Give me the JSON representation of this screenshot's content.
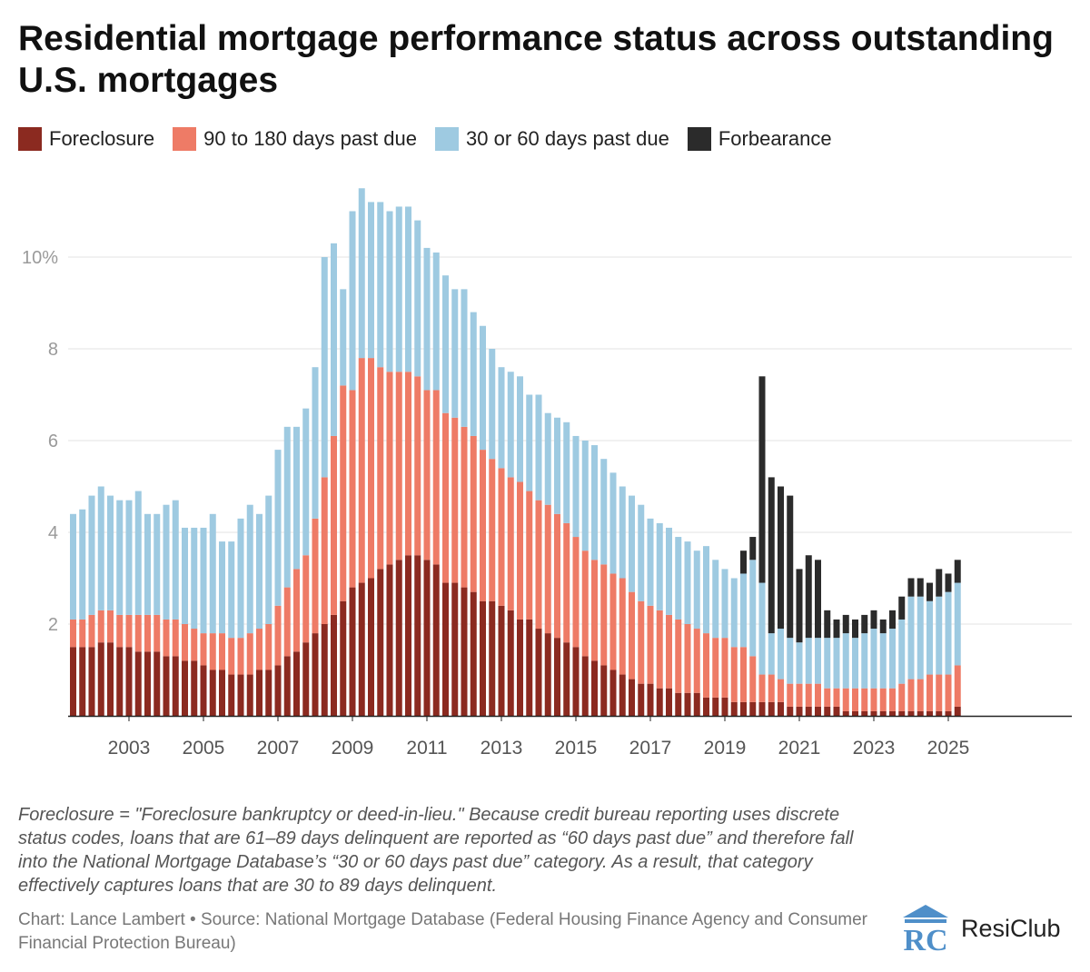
{
  "title": "Residential mortgage performance status across outstanding U.S. mortgages",
  "legend": [
    {
      "label": "Foreclosure",
      "color": "#8b2a20"
    },
    {
      "label": "90 to 180 days past due",
      "color": "#ee7b66"
    },
    {
      "label": "30 or 60 days past due",
      "color": "#9ecae1"
    },
    {
      "label": "Forbearance",
      "color": "#2b2b2b"
    }
  ],
  "note": "Foreclosure = \"Foreclosure bankruptcy or deed-in-lieu.\" Because credit bureau reporting uses discrete status codes, loans that are 61–89 days delinquent are reported as “60 days past due” and therefore fall into the National Mortgage Database’s “30 or 60 days past due” category. As a result, that category effectively captures loans that are 30 to 89 days delinquent.",
  "credit": "Chart: Lance Lambert • Source: National Mortgage Database (Federal Housing Finance Agency and Consumer Financial Protection Bureau)",
  "logo": {
    "mark": "RC",
    "word": "ResiClub"
  },
  "chart_data": {
    "type": "bar",
    "stacked": true,
    "title": "Residential mortgage performance status across outstanding U.S. mortgages",
    "xlabel": "",
    "ylabel": "",
    "ylim": [
      0,
      11.6
    ],
    "y_ticks": [
      {
        "v": 2,
        "label": "2"
      },
      {
        "v": 4,
        "label": "4"
      },
      {
        "v": 6,
        "label": "6"
      },
      {
        "v": 8,
        "label": "8"
      },
      {
        "v": 10,
        "label": "10%"
      }
    ],
    "x_tick_labels": [
      "2003",
      "2005",
      "2007",
      "2009",
      "2011",
      "2013",
      "2015",
      "2017",
      "2019",
      "2021",
      "2023",
      "2025"
    ],
    "grid": true,
    "legend_position": "top",
    "start": "2002 Q1",
    "categories": [
      "2002 Q1",
      "2002 Q2",
      "2002 Q3",
      "2002 Q4",
      "2003 Q1",
      "2003 Q2",
      "2003 Q3",
      "2003 Q4",
      "2004 Q1",
      "2004 Q2",
      "2004 Q3",
      "2004 Q4",
      "2005 Q1",
      "2005 Q2",
      "2005 Q3",
      "2005 Q4",
      "2006 Q1",
      "2006 Q2",
      "2006 Q3",
      "2006 Q4",
      "2007 Q1",
      "2007 Q2",
      "2007 Q3",
      "2007 Q4",
      "2008 Q1",
      "2008 Q2",
      "2008 Q3",
      "2008 Q4",
      "2009 Q1",
      "2009 Q2",
      "2009 Q3",
      "2009 Q4",
      "2010 Q1",
      "2010 Q2",
      "2010 Q3",
      "2010 Q4",
      "2011 Q1",
      "2011 Q2",
      "2011 Q3",
      "2011 Q4",
      "2012 Q1",
      "2012 Q2",
      "2012 Q3",
      "2012 Q4",
      "2013 Q1",
      "2013 Q2",
      "2013 Q3",
      "2013 Q4",
      "2014 Q1",
      "2014 Q2",
      "2014 Q3",
      "2014 Q4",
      "2015 Q1",
      "2015 Q2",
      "2015 Q3",
      "2015 Q4",
      "2016 Q1",
      "2016 Q2",
      "2016 Q3",
      "2016 Q4",
      "2017 Q1",
      "2017 Q2",
      "2017 Q3",
      "2017 Q4",
      "2018 Q1",
      "2018 Q2",
      "2018 Q3",
      "2018 Q4",
      "2019 Q1",
      "2019 Q2",
      "2019 Q3",
      "2019 Q4",
      "2020 Q1",
      "2020 Q2",
      "2020 Q3",
      "2020 Q4",
      "2021 Q1",
      "2021 Q2",
      "2021 Q3",
      "2021 Q4",
      "2022 Q1",
      "2022 Q2",
      "2022 Q3",
      "2022 Q4",
      "2023 Q1",
      "2023 Q2",
      "2023 Q3",
      "2023 Q4",
      "2024 Q1",
      "2024 Q2",
      "2024 Q3",
      "2024 Q4",
      "2025 Q1",
      "2025 Q2",
      "2025 Q3",
      "2025 Q4"
    ],
    "series": [
      {
        "name": "Foreclosure",
        "color": "#8b2a20",
        "values": [
          1.5,
          1.5,
          1.5,
          1.6,
          1.6,
          1.5,
          1.5,
          1.4,
          1.4,
          1.4,
          1.3,
          1.3,
          1.2,
          1.2,
          1.1,
          1.0,
          1.0,
          0.9,
          0.9,
          0.9,
          1.0,
          1.0,
          1.1,
          1.3,
          1.4,
          1.6,
          1.8,
          2.0,
          2.2,
          2.5,
          2.8,
          2.9,
          3.0,
          3.2,
          3.3,
          3.4,
          3.5,
          3.5,
          3.4,
          3.3,
          2.9,
          2.9,
          2.8,
          2.7,
          2.5,
          2.5,
          2.4,
          2.3,
          2.1,
          2.1,
          1.9,
          1.8,
          1.7,
          1.6,
          1.5,
          1.3,
          1.2,
          1.1,
          1.0,
          0.9,
          0.8,
          0.7,
          0.7,
          0.6,
          0.6,
          0.5,
          0.5,
          0.5,
          0.4,
          0.4,
          0.4,
          0.3,
          0.3,
          0.3,
          0.3,
          0.3,
          0.3,
          0.2,
          0.2,
          0.2,
          0.2,
          0.2,
          0.2,
          0.1,
          0.1,
          0.1,
          0.1,
          0.1,
          0.1,
          0.1,
          0.1,
          0.1,
          0.1,
          0.1,
          0.1,
          0.2
        ]
      },
      {
        "name": "90 to 180 days past due",
        "color": "#ee7b66",
        "values": [
          0.6,
          0.6,
          0.7,
          0.7,
          0.7,
          0.7,
          0.7,
          0.8,
          0.8,
          0.8,
          0.8,
          0.8,
          0.8,
          0.7,
          0.7,
          0.8,
          0.8,
          0.8,
          0.8,
          0.9,
          0.9,
          1.0,
          1.3,
          1.5,
          1.8,
          1.9,
          2.5,
          3.2,
          3.9,
          4.7,
          4.3,
          4.9,
          4.8,
          4.4,
          4.2,
          4.1,
          4.0,
          3.9,
          3.7,
          3.8,
          3.7,
          3.6,
          3.5,
          3.4,
          3.3,
          3.1,
          3.0,
          2.9,
          3.0,
          2.8,
          2.8,
          2.8,
          2.7,
          2.6,
          2.4,
          2.3,
          2.2,
          2.2,
          2.1,
          2.1,
          1.9,
          1.8,
          1.7,
          1.7,
          1.6,
          1.6,
          1.5,
          1.4,
          1.4,
          1.3,
          1.3,
          1.2,
          1.2,
          1.0,
          0.6,
          0.6,
          0.5,
          0.5,
          0.5,
          0.5,
          0.5,
          0.4,
          0.4,
          0.5,
          0.5,
          0.5,
          0.5,
          0.5,
          0.5,
          0.6,
          0.7,
          0.7,
          0.8,
          0.8,
          0.8,
          0.9
        ]
      },
      {
        "name": "30 or 60 days past due",
        "color": "#9ecae1",
        "values": [
          2.3,
          2.4,
          2.6,
          2.7,
          2.5,
          2.5,
          2.5,
          2.7,
          2.2,
          2.2,
          2.5,
          2.6,
          2.1,
          2.2,
          2.3,
          2.6,
          2.0,
          2.1,
          2.6,
          2.8,
          2.5,
          2.8,
          3.4,
          3.5,
          3.1,
          3.2,
          3.3,
          4.8,
          4.2,
          2.1,
          3.9,
          3.7,
          3.4,
          3.6,
          3.5,
          3.6,
          3.6,
          3.4,
          3.1,
          3.0,
          3.0,
          2.8,
          3.0,
          2.7,
          2.7,
          2.4,
          2.2,
          2.3,
          2.3,
          2.1,
          2.3,
          2.0,
          2.1,
          2.2,
          2.2,
          2.4,
          2.5,
          2.3,
          2.2,
          2.0,
          2.1,
          2.1,
          1.9,
          1.9,
          1.9,
          1.8,
          1.8,
          1.7,
          1.9,
          1.7,
          1.5,
          1.5,
          1.6,
          2.1,
          2.0,
          0.9,
          1.1,
          1.0,
          0.9,
          1.0,
          1.0,
          1.1,
          1.1,
          1.2,
          1.1,
          1.2,
          1.3,
          1.2,
          1.3,
          1.4,
          1.8,
          1.8,
          1.6,
          1.7,
          1.8,
          1.8
        ]
      },
      {
        "name": "Forbearance",
        "color": "#2b2b2b",
        "values": [
          0,
          0,
          0,
          0,
          0,
          0,
          0,
          0,
          0,
          0,
          0,
          0,
          0,
          0,
          0,
          0,
          0,
          0,
          0,
          0,
          0,
          0,
          0,
          0,
          0,
          0,
          0,
          0,
          0,
          0,
          0,
          0,
          0,
          0,
          0,
          0,
          0,
          0,
          0,
          0,
          0,
          0,
          0,
          0,
          0,
          0,
          0,
          0,
          0,
          0,
          0,
          0,
          0,
          0,
          0,
          0,
          0,
          0,
          0,
          0,
          0,
          0,
          0,
          0,
          0,
          0,
          0,
          0,
          0,
          0,
          0,
          0,
          0.5,
          0.5,
          4.5,
          3.4,
          3.1,
          3.1,
          1.6,
          1.8,
          1.7,
          0.6,
          0.4,
          0.4,
          0.4,
          0.4,
          0.4,
          0.3,
          0.4,
          0.5,
          0.4,
          0.4,
          0.4,
          0.6,
          0.4,
          0.5
        ]
      }
    ]
  }
}
